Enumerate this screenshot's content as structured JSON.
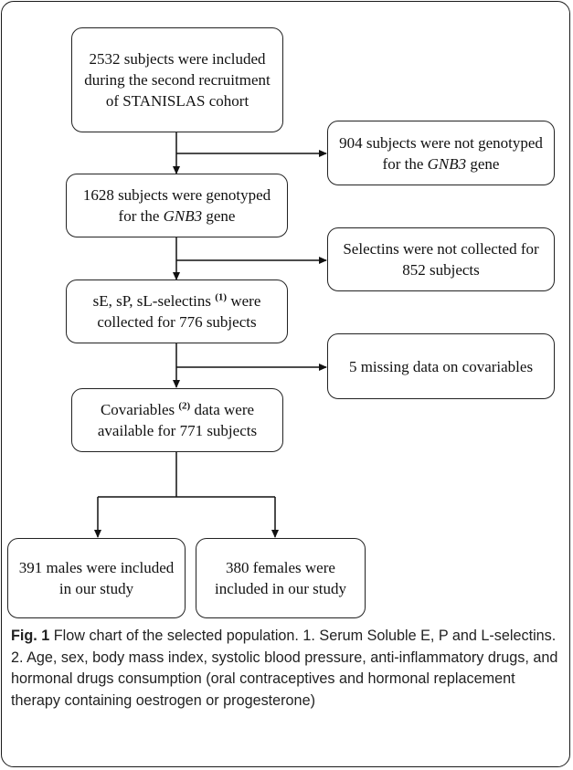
{
  "nodes": {
    "recruit": "2532 subjects were included during the second recruitment of STANISLAS cohort",
    "not_genotyped": {
      "before": "904 subjects were not genotyped for the ",
      "gene": "GNB3",
      "after": " gene"
    },
    "genotyped": {
      "before": "1628 subjects were genotyped for the ",
      "gene": "GNB3",
      "after": " gene"
    },
    "selectins_not_collected": "Selectins were not collected for 852 subjects",
    "selectins_collected": {
      "before": "sE, sP, sL-selectins ",
      "sup": "(1)",
      "after": " were collected for 776 subjects"
    },
    "missing_covariables": "5 missing data on covariables",
    "covariables": {
      "before": "Covariables ",
      "sup": "(2)",
      "after": " data were available for 771 subjects"
    },
    "males": "391 males were included in our study",
    "females": "380 females were included in our study"
  },
  "caption": {
    "label": "Fig. 1",
    "text": " Flow chart of the selected population. 1. Serum Soluble E, P and L-selectins. 2. Age, sex, body mass index, systolic blood pressure, anti-inflammatory drugs, and hormonal drugs consumption (oral contraceptives and hormonal replacement therapy containing oestrogen or progesterone)"
  }
}
